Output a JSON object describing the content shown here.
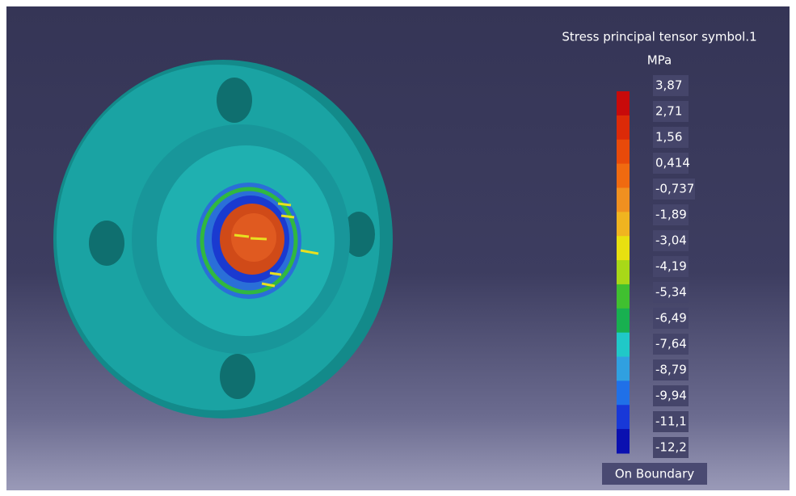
{
  "legend": {
    "title": "Stress principal tensor symbol.1",
    "unit": "MPa",
    "labels": [
      "3,87",
      "2,71",
      "1,56",
      "0,414",
      "-0,737",
      "-1,89",
      "-3,04",
      "-4,19",
      "-5,34",
      "-6,49",
      "-7,64",
      "-8,79",
      "-9,94",
      "-11,1",
      "-12,2"
    ],
    "colors": [
      "#c80a0a",
      "#dc2a08",
      "#e84a0a",
      "#f06a10",
      "#f09020",
      "#f0b420",
      "#e8e010",
      "#a8d818",
      "#40c030",
      "#18b050",
      "#20c8c8",
      "#30a0e0",
      "#2070e8",
      "#1838d8",
      "#0a10b0"
    ],
    "footer": "On Boundary"
  }
}
